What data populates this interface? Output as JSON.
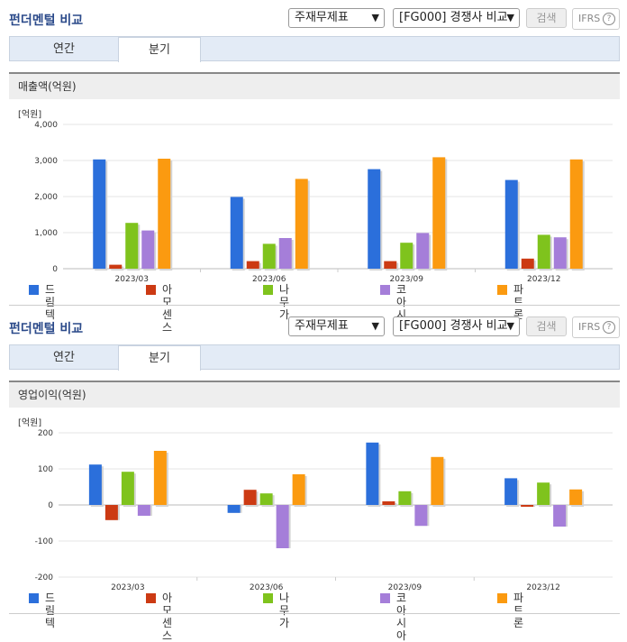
{
  "header": {
    "title": "펀더멘털 비교",
    "select_statement": "주재무제표",
    "select_compare": "[FG000] 경쟁사 비교",
    "search_label": "검색",
    "ifrs_label": "IFRS",
    "help_glyph": "?"
  },
  "tabs": [
    {
      "label": "연간"
    },
    {
      "label": "분기"
    }
  ],
  "active_tab": 1,
  "charts": [
    {
      "subtitle": "매출액(억원)",
      "unit_label": "[억원]"
    },
    {
      "subtitle": "영업이익(억원)",
      "unit_label": "[억원]"
    }
  ],
  "colors": [
    "#2b6fdb",
    "#cc3a13",
    "#7fc31d",
    "#a57ed9",
    "#fb9a10"
  ],
  "chart_data": [
    {
      "type": "bar",
      "title": "매출액(억원)",
      "ylabel": "[억원]",
      "categories": [
        "2023/03",
        "2023/06",
        "2023/09",
        "2023/12"
      ],
      "ylim": [
        0,
        4000
      ],
      "yticks": [
        "0",
        "1,000",
        "2,000",
        "3,000",
        "4,000"
      ],
      "series": [
        {
          "name": "드림텍",
          "values": [
            3030,
            1990,
            2760,
            2460
          ]
        },
        {
          "name": "아모센스",
          "values": [
            110,
            210,
            210,
            280
          ]
        },
        {
          "name": "나무가",
          "values": [
            1270,
            690,
            720,
            940
          ]
        },
        {
          "name": "코아시아",
          "values": [
            1060,
            850,
            990,
            870
          ]
        },
        {
          "name": "파트론",
          "values": [
            3050,
            2490,
            3090,
            3030
          ]
        }
      ],
      "grid": true,
      "legend": "bottom"
    },
    {
      "type": "bar",
      "title": "영업이익(억원)",
      "ylabel": "[억원]",
      "categories": [
        "2023/03",
        "2023/06",
        "2023/09",
        "2023/12"
      ],
      "ylim": [
        -200,
        200
      ],
      "yticks": [
        "-200",
        "-100",
        "0",
        "100",
        "200"
      ],
      "series": [
        {
          "name": "드림텍",
          "values": [
            112,
            -22,
            173,
            74
          ]
        },
        {
          "name": "아모센스",
          "values": [
            -42,
            42,
            10,
            -5
          ]
        },
        {
          "name": "나무가",
          "values": [
            92,
            32,
            38,
            62
          ]
        },
        {
          "name": "코아시아",
          "values": [
            -30,
            -120,
            -58,
            -60
          ]
        },
        {
          "name": "파트론",
          "values": [
            150,
            85,
            133,
            43
          ]
        }
      ],
      "grid": true,
      "legend": "bottom"
    }
  ]
}
